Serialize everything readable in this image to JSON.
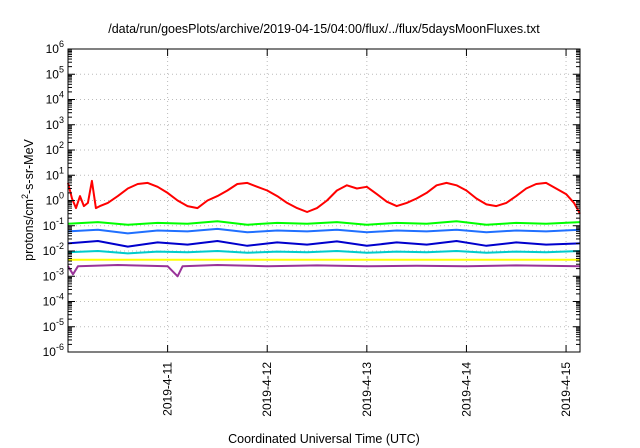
{
  "chart_data": {
    "type": "line",
    "title": "/data/run/goesPlots/archive/2019-04-15/04:00/flux/../flux/5daysMoonFluxes.txt",
    "xlabel": "Coordinated Universal Time (UTC)",
    "ylabel": {
      "pre": "protons/cm",
      "sup": "2",
      "post": "-s-sr-MeV"
    },
    "yscale": "log",
    "ylim_exponent": [
      -6,
      6
    ],
    "y_ticks": [
      {
        "base": "10",
        "exp": "6"
      },
      {
        "base": "10",
        "exp": "5"
      },
      {
        "base": "10",
        "exp": "4"
      },
      {
        "base": "10",
        "exp": "3"
      },
      {
        "base": "10",
        "exp": "2"
      },
      {
        "base": "10",
        "exp": "1"
      },
      {
        "base": "10",
        "exp": "0"
      },
      {
        "base": "10",
        "exp": "-1"
      },
      {
        "base": "10",
        "exp": "-2"
      },
      {
        "base": "10",
        "exp": "-3"
      },
      {
        "base": "10",
        "exp": "-4"
      },
      {
        "base": "10",
        "exp": "-5"
      },
      {
        "base": "10",
        "exp": "-6"
      }
    ],
    "x_domain_days": [
      0,
      5.14
    ],
    "x_ticks": [
      {
        "label": "2019-4-11",
        "day": 1
      },
      {
        "label": "2019-4-12",
        "day": 2
      },
      {
        "label": "2019-4-13",
        "day": 3
      },
      {
        "label": "2019-4-14",
        "day": 4
      },
      {
        "label": "2019-4-15",
        "day": 5
      }
    ],
    "grid": true,
    "series": [
      {
        "color": "#ff0000",
        "points": [
          [
            0.0,
            5.0
          ],
          [
            0.04,
            1.2
          ],
          [
            0.08,
            0.5
          ],
          [
            0.12,
            1.5
          ],
          [
            0.16,
            0.6
          ],
          [
            0.2,
            0.8
          ],
          [
            0.24,
            6.0
          ],
          [
            0.28,
            0.5
          ],
          [
            0.32,
            0.6
          ],
          [
            0.4,
            0.8
          ],
          [
            0.5,
            1.5
          ],
          [
            0.6,
            3.0
          ],
          [
            0.7,
            4.5
          ],
          [
            0.8,
            5.0
          ],
          [
            0.9,
            3.5
          ],
          [
            1.0,
            2.0
          ],
          [
            1.1,
            1.0
          ],
          [
            1.2,
            0.6
          ],
          [
            1.3,
            0.5
          ],
          [
            1.4,
            1.0
          ],
          [
            1.5,
            1.5
          ],
          [
            1.6,
            2.5
          ],
          [
            1.7,
            4.5
          ],
          [
            1.8,
            5.0
          ],
          [
            1.9,
            3.5
          ],
          [
            2.0,
            2.5
          ],
          [
            2.1,
            1.5
          ],
          [
            2.2,
            0.8
          ],
          [
            2.3,
            0.5
          ],
          [
            2.4,
            0.35
          ],
          [
            2.5,
            0.5
          ],
          [
            2.6,
            1.0
          ],
          [
            2.7,
            2.5
          ],
          [
            2.8,
            4.0
          ],
          [
            2.9,
            3.0
          ],
          [
            3.0,
            3.5
          ],
          [
            3.1,
            1.8
          ],
          [
            3.2,
            0.9
          ],
          [
            3.3,
            0.6
          ],
          [
            3.4,
            0.8
          ],
          [
            3.5,
            1.2
          ],
          [
            3.6,
            2.0
          ],
          [
            3.7,
            4.0
          ],
          [
            3.8,
            5.0
          ],
          [
            3.9,
            4.0
          ],
          [
            4.0,
            2.5
          ],
          [
            4.1,
            1.2
          ],
          [
            4.2,
            0.7
          ],
          [
            4.3,
            0.6
          ],
          [
            4.4,
            0.8
          ],
          [
            4.5,
            1.5
          ],
          [
            4.6,
            3.0
          ],
          [
            4.7,
            4.5
          ],
          [
            4.8,
            5.0
          ],
          [
            4.9,
            3.0
          ],
          [
            5.0,
            1.8
          ],
          [
            5.08,
            0.8
          ],
          [
            5.14,
            0.3
          ]
        ]
      },
      {
        "color": "#00ff00",
        "points": [
          [
            0.0,
            0.12
          ],
          [
            0.3,
            0.14
          ],
          [
            0.6,
            0.11
          ],
          [
            0.9,
            0.13
          ],
          [
            1.2,
            0.12
          ],
          [
            1.5,
            0.15
          ],
          [
            1.8,
            0.11
          ],
          [
            2.1,
            0.13
          ],
          [
            2.4,
            0.12
          ],
          [
            2.7,
            0.14
          ],
          [
            3.0,
            0.11
          ],
          [
            3.3,
            0.13
          ],
          [
            3.6,
            0.12
          ],
          [
            3.9,
            0.15
          ],
          [
            4.2,
            0.11
          ],
          [
            4.5,
            0.13
          ],
          [
            4.8,
            0.12
          ],
          [
            5.14,
            0.14
          ]
        ]
      },
      {
        "color": "#2070ff",
        "points": [
          [
            0.0,
            0.06
          ],
          [
            0.3,
            0.07
          ],
          [
            0.6,
            0.05
          ],
          [
            0.9,
            0.065
          ],
          [
            1.2,
            0.06
          ],
          [
            1.5,
            0.075
          ],
          [
            1.8,
            0.055
          ],
          [
            2.1,
            0.065
          ],
          [
            2.4,
            0.06
          ],
          [
            2.7,
            0.07
          ],
          [
            3.0,
            0.055
          ],
          [
            3.3,
            0.065
          ],
          [
            3.6,
            0.06
          ],
          [
            3.9,
            0.07
          ],
          [
            4.2,
            0.055
          ],
          [
            4.5,
            0.065
          ],
          [
            4.8,
            0.06
          ],
          [
            5.14,
            0.07
          ]
        ]
      },
      {
        "color": "#0000cc",
        "points": [
          [
            0.0,
            0.02
          ],
          [
            0.3,
            0.025
          ],
          [
            0.6,
            0.015
          ],
          [
            0.9,
            0.022
          ],
          [
            1.2,
            0.018
          ],
          [
            1.5,
            0.025
          ],
          [
            1.8,
            0.016
          ],
          [
            2.1,
            0.022
          ],
          [
            2.4,
            0.018
          ],
          [
            2.7,
            0.024
          ],
          [
            3.0,
            0.016
          ],
          [
            3.3,
            0.022
          ],
          [
            3.6,
            0.018
          ],
          [
            3.9,
            0.025
          ],
          [
            4.2,
            0.016
          ],
          [
            4.5,
            0.022
          ],
          [
            4.8,
            0.018
          ],
          [
            5.14,
            0.02
          ]
        ]
      },
      {
        "color": "#00cccc",
        "points": [
          [
            0.0,
            0.009
          ],
          [
            0.3,
            0.01
          ],
          [
            0.6,
            0.008
          ],
          [
            0.9,
            0.0095
          ],
          [
            1.2,
            0.009
          ],
          [
            1.5,
            0.01
          ],
          [
            1.8,
            0.0085
          ],
          [
            2.1,
            0.0095
          ],
          [
            2.4,
            0.009
          ],
          [
            2.7,
            0.01
          ],
          [
            3.0,
            0.0085
          ],
          [
            3.3,
            0.0095
          ],
          [
            3.6,
            0.009
          ],
          [
            3.9,
            0.01
          ],
          [
            4.2,
            0.0085
          ],
          [
            4.5,
            0.0095
          ],
          [
            4.8,
            0.009
          ],
          [
            5.14,
            0.01
          ]
        ]
      },
      {
        "color": "#ffff00",
        "points": [
          [
            0.0,
            0.0045
          ],
          [
            1.0,
            0.0045
          ],
          [
            2.0,
            0.0045
          ],
          [
            3.0,
            0.0045
          ],
          [
            4.0,
            0.0045
          ],
          [
            5.14,
            0.0045
          ]
        ]
      },
      {
        "color": "#993399",
        "points": [
          [
            0.0,
            0.0025
          ],
          [
            0.05,
            0.0012
          ],
          [
            0.1,
            0.0025
          ],
          [
            0.5,
            0.0028
          ],
          [
            1.0,
            0.0025
          ],
          [
            1.1,
            0.001
          ],
          [
            1.15,
            0.0025
          ],
          [
            1.5,
            0.0028
          ],
          [
            2.0,
            0.0025
          ],
          [
            2.5,
            0.0027
          ],
          [
            3.0,
            0.0025
          ],
          [
            3.5,
            0.0026
          ],
          [
            4.0,
            0.0025
          ],
          [
            4.5,
            0.0027
          ],
          [
            5.14,
            0.0025
          ]
        ]
      }
    ]
  }
}
